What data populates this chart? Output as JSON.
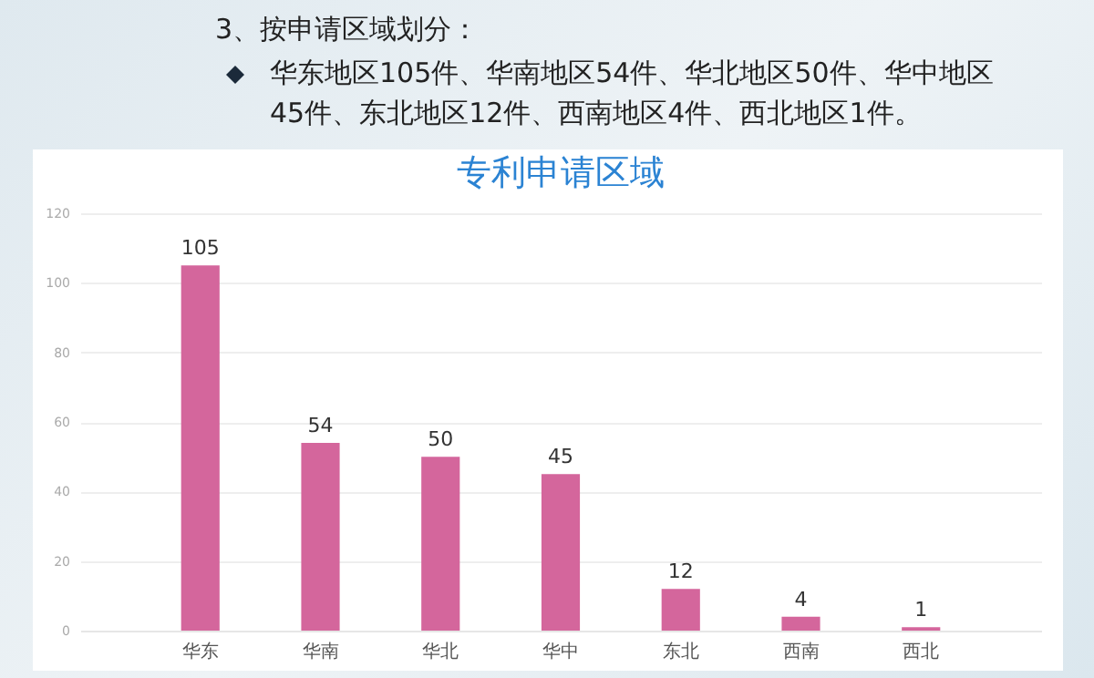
{
  "chart_data": {
    "type": "bar",
    "title": "专利申请区域",
    "annotations": [
      "3、按申请区域划分：",
      "华东地区105件、华南地区54件、华北地区50件、华中地区45件、东北地区12件、西南地区4件、西北地区1件。"
    ],
    "categories": [
      "华东",
      "华南",
      "华北",
      "华中",
      "东北",
      "西南",
      "西北"
    ],
    "values": [
      105,
      54,
      50,
      45,
      12,
      4,
      1
    ],
    "color": "#d4669c",
    "ylim": [
      0,
      120
    ],
    "yticks": [
      0,
      20,
      40,
      60,
      80,
      100,
      120
    ],
    "grid": "y",
    "data_labels": true
  }
}
